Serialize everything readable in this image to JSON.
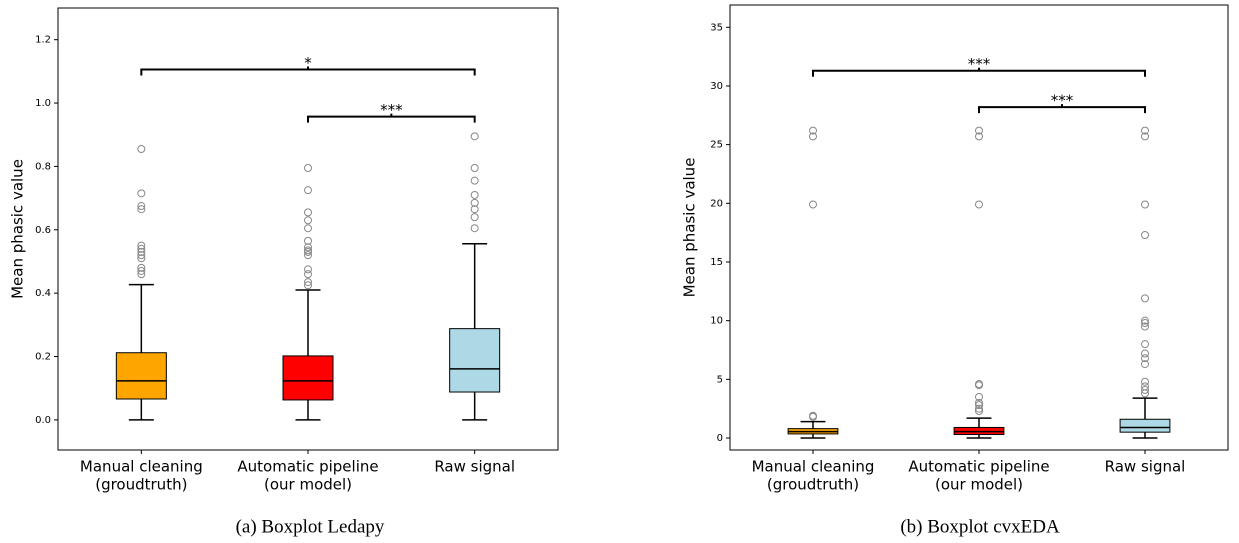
{
  "chart_data": [
    {
      "type": "boxplot",
      "caption": "(a) Boxplot Ledapy",
      "y_label": "Mean phasic value",
      "categories": [
        [
          "Manual cleaning",
          "(groudtruth)"
        ],
        [
          "Automatic pipeline",
          "(our model)"
        ],
        [
          "Raw signal"
        ]
      ],
      "colors": [
        "#ffa500",
        "#ff0000",
        "#add8e6"
      ],
      "boxes": [
        {
          "whislo": 0,
          "q1": 0.066,
          "med": 0.123,
          "q3": 0.212,
          "whishi": 0.427,
          "fliers": [
            0.855,
            0.715,
            0.675,
            0.665,
            0.55,
            0.54,
            0.53,
            0.52,
            0.51,
            0.48,
            0.47,
            0.46
          ]
        },
        {
          "whislo": 0,
          "q1": 0.063,
          "med": 0.123,
          "q3": 0.202,
          "whishi": 0.41,
          "fliers": [
            0.795,
            0.725,
            0.655,
            0.63,
            0.605,
            0.565,
            0.545,
            0.535,
            0.53,
            0.52,
            0.475,
            0.46,
            0.435,
            0.425
          ]
        },
        {
          "whislo": 0,
          "q1": 0.088,
          "med": 0.161,
          "q3": 0.288,
          "whishi": 0.556,
          "fliers": [
            0.895,
            0.795,
            0.755,
            0.71,
            0.685,
            0.665,
            0.64,
            0.605
          ]
        }
      ],
      "annotations": [
        {
          "text": "*",
          "from": 0,
          "to": 2,
          "y": 1.106
        },
        {
          "text": "***",
          "from": 1,
          "to": 2,
          "y": 0.957
        }
      ],
      "ylim": [
        -0.095,
        1.3
      ],
      "yticks": [
        {
          "value": 0,
          "label": "0.0"
        },
        0.2,
        0.4,
        0.6,
        0.8,
        {
          "value": 1,
          "label": "1.0"
        },
        1.2
      ]
    },
    {
      "type": "boxplot",
      "caption": "(b) Boxplot cvxEDA",
      "y_label": "Mean phasic value",
      "categories": [
        [
          "Manual cleaning",
          "(groudtruth)"
        ],
        [
          "Automatic pipeline",
          "(our model)"
        ],
        [
          "Raw signal"
        ]
      ],
      "colors": [
        "#ffa500",
        "#ff0000",
        "#add8e6"
      ],
      "boxes": [
        {
          "whislo": 0,
          "q1": 0.35,
          "med": 0.55,
          "q3": 0.8,
          "whishi": 1.4,
          "fliers": [
            1.8,
            1.9,
            19.9,
            25.7,
            26.2
          ]
        },
        {
          "whislo": 0,
          "q1": 0.3,
          "med": 0.55,
          "q3": 0.9,
          "whishi": 1.7,
          "fliers": [
            2.3,
            2.5,
            2.8,
            3.0,
            3.5,
            4.5,
            4.6,
            19.9,
            25.7,
            26.2
          ]
        },
        {
          "whislo": 0,
          "q1": 0.5,
          "med": 0.9,
          "q3": 1.6,
          "whishi": 3.4,
          "fliers": [
            3.8,
            4.1,
            4.4,
            4.8,
            6.3,
            6.8,
            7.2,
            8.0,
            9.5,
            9.8,
            10.0,
            11.9,
            17.3,
            19.9,
            25.7,
            26.2
          ]
        }
      ],
      "annotations": [
        {
          "text": "***",
          "from": 0,
          "to": 2,
          "y": 31.3
        },
        {
          "text": "***",
          "from": 1,
          "to": 2,
          "y": 28.2
        }
      ],
      "ylim": [
        -1.02,
        36.9
      ],
      "yticks": [
        0,
        5,
        10,
        15,
        20,
        25,
        30,
        35
      ]
    }
  ]
}
